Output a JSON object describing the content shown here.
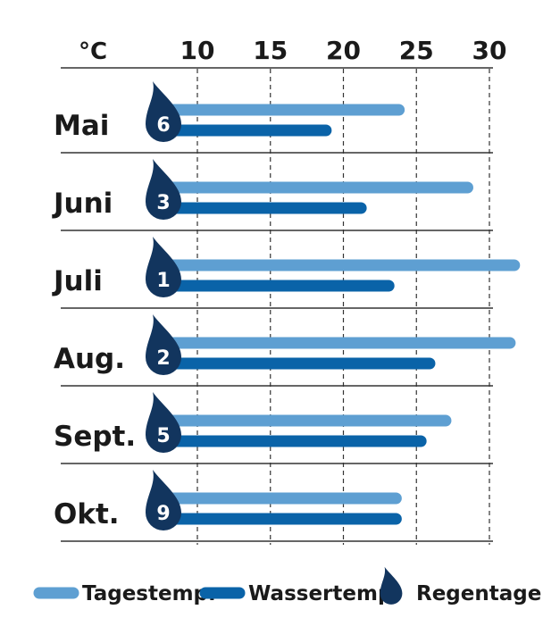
{
  "chart_data": {
    "type": "bar",
    "orientation": "horizontal",
    "unit_label": "°C",
    "x_ticks": [
      10,
      15,
      20,
      25,
      30
    ],
    "xlim": [
      0,
      32
    ],
    "categories": [
      "Mai",
      "Juni",
      "Juli",
      "Aug.",
      "Sept.",
      "Okt."
    ],
    "series": [
      {
        "name": "Tagestemp.",
        "color": "#5e9fd2",
        "values": [
          23.8,
          28.5,
          31.7,
          31.4,
          27.0,
          23.6
        ]
      },
      {
        "name": "Wassertemp.",
        "color": "#0a63a8",
        "values": [
          18.8,
          21.2,
          23.1,
          25.9,
          25.3,
          23.6
        ]
      }
    ],
    "rain_days": {
      "name": "Regentage",
      "color": "#12355e",
      "values": [
        6,
        3,
        1,
        2,
        5,
        9
      ]
    },
    "grid": "dashed-vertical"
  }
}
